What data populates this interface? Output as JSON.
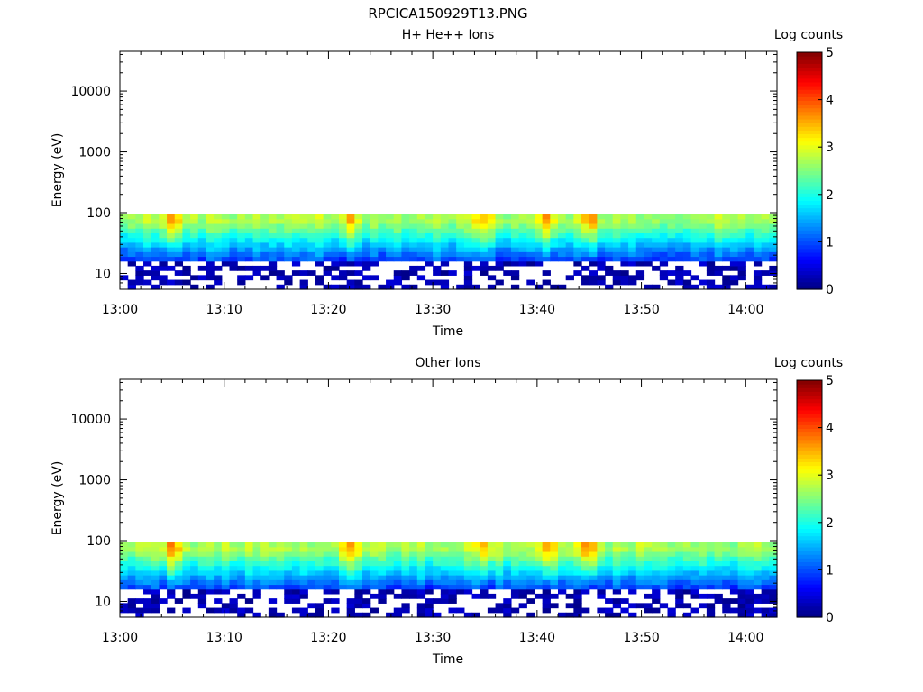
{
  "figure_title": "RPCICA150929T13.PNG",
  "chart_data": [
    {
      "type": "heatmap",
      "title": "H+ He++ Ions",
      "xlabel": "Time",
      "ylabel": "Energy (eV)",
      "x_ticks": [
        "13:00",
        "13:10",
        "13:20",
        "13:30",
        "13:40",
        "13:50",
        "14:00"
      ],
      "x_range": [
        "13:00",
        "14:03"
      ],
      "y_scale": "log",
      "y_ticks": [
        "10",
        "100",
        "1000",
        "10000"
      ],
      "y_range": [
        5.5,
        45000
      ],
      "colorbar": {
        "label": "Log counts",
        "ticks": [
          "0",
          "1",
          "2",
          "3",
          "4",
          "5"
        ],
        "range": [
          0,
          5
        ],
        "colormap": "rainbow"
      },
      "energy_band_eV": [
        5.5,
        95
      ],
      "peak_log_counts": [
        {
          "time": "13:05",
          "value": 3.8
        },
        {
          "time": "13:22",
          "value": 3.4
        },
        {
          "time": "13:35",
          "value": 3.5
        },
        {
          "time": "13:41",
          "value": 3.6
        },
        {
          "time": "13:45",
          "value": 3.7
        }
      ]
    },
    {
      "type": "heatmap",
      "title": "Other Ions",
      "xlabel": "Time",
      "ylabel": "Energy (eV)",
      "x_ticks": [
        "13:00",
        "13:10",
        "13:20",
        "13:30",
        "13:40",
        "13:50",
        "14:00"
      ],
      "x_range": [
        "13:00",
        "14:03"
      ],
      "y_scale": "log",
      "y_ticks": [
        "10",
        "100",
        "1000",
        "10000"
      ],
      "y_range": [
        5.5,
        45000
      ],
      "colorbar": {
        "label": "Log counts",
        "ticks": [
          "0",
          "1",
          "2",
          "3",
          "4",
          "5"
        ],
        "range": [
          0,
          5
        ],
        "colormap": "rainbow"
      },
      "energy_band_eV": [
        5.5,
        95
      ],
      "peak_log_counts": [
        {
          "time": "13:05",
          "value": 3.6
        },
        {
          "time": "13:22",
          "value": 3.4
        },
        {
          "time": "13:35",
          "value": 3.4
        },
        {
          "time": "13:41",
          "value": 3.7
        },
        {
          "time": "13:45",
          "value": 3.9
        }
      ]
    }
  ]
}
